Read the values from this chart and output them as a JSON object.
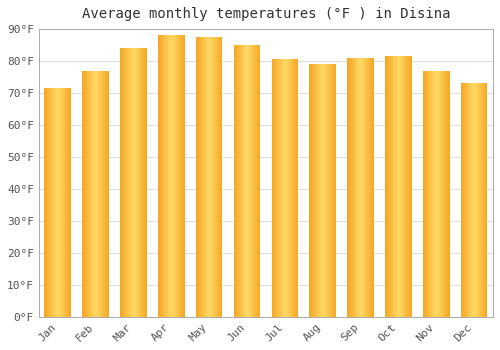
{
  "title": "Average monthly temperatures (°F ) in Disina",
  "months": [
    "Jan",
    "Feb",
    "Mar",
    "Apr",
    "May",
    "Jun",
    "Jul",
    "Aug",
    "Sep",
    "Oct",
    "Nov",
    "Dec"
  ],
  "values": [
    71.5,
    77,
    84,
    88,
    87.5,
    85,
    80.5,
    79,
    81,
    81.5,
    77,
    73
  ],
  "bar_color_main": "#F5A623",
  "bar_color_light": "#FFD966",
  "ylim": [
    0,
    90
  ],
  "yticks": [
    0,
    10,
    20,
    30,
    40,
    50,
    60,
    70,
    80,
    90
  ],
  "ytick_labels": [
    "0°F",
    "10°F",
    "20°F",
    "30°F",
    "40°F",
    "50°F",
    "60°F",
    "70°F",
    "80°F",
    "90°F"
  ],
  "background_color": "#FFFFFF",
  "plot_bg_color": "#FFFFFF",
  "grid_color": "#DDDDDD",
  "title_fontsize": 10,
  "tick_fontsize": 8,
  "tick_color": "#555555",
  "border_color": "#AAAAAA"
}
